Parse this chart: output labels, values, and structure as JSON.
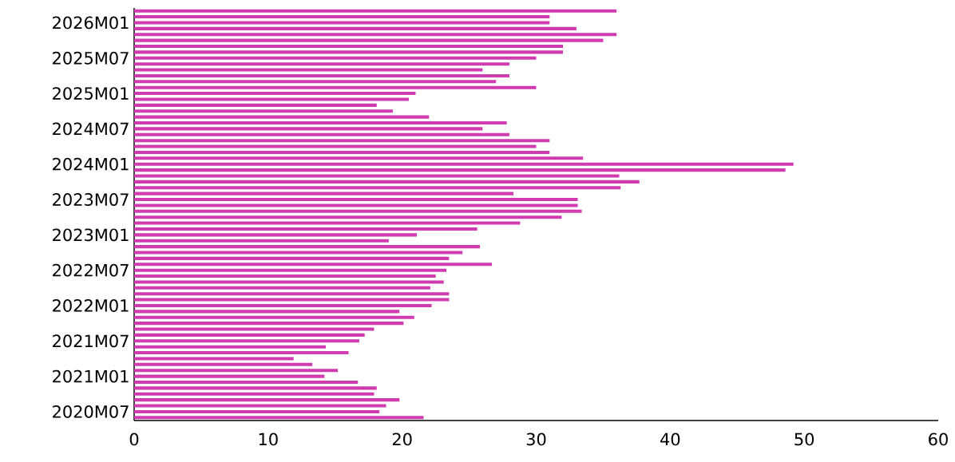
{
  "chart_data": {
    "type": "bar",
    "orientation": "horizontal",
    "color": "#d03cb0",
    "categories": [
      null,
      null,
      "2026M01",
      null,
      null,
      null,
      null,
      null,
      "2025M07",
      null,
      null,
      null,
      null,
      null,
      "2025M01",
      null,
      null,
      null,
      null,
      null,
      "2024M07",
      null,
      null,
      null,
      null,
      null,
      "2024M01",
      null,
      null,
      null,
      null,
      null,
      "2023M07",
      null,
      null,
      null,
      null,
      null,
      "2023M01",
      null,
      null,
      null,
      null,
      null,
      "2022M07",
      null,
      null,
      null,
      null,
      null,
      "2022M01",
      null,
      null,
      null,
      null,
      null,
      "2021M07",
      null,
      null,
      null,
      null,
      null,
      "2021M01",
      null,
      null,
      null,
      null,
      null,
      "2020M07",
      null
    ],
    "values": [
      36.0,
      31.0,
      31.0,
      33.0,
      36.0,
      35.0,
      32.0,
      32.0,
      30.0,
      28.0,
      26.0,
      28.0,
      27.0,
      30.0,
      21.0,
      20.5,
      18.1,
      19.3,
      22.0,
      27.8,
      26.0,
      28.0,
      31.0,
      30.0,
      31.0,
      33.5,
      49.2,
      48.6,
      36.2,
      37.7,
      36.3,
      28.3,
      33.1,
      33.1,
      33.4,
      31.9,
      28.8,
      25.6,
      21.1,
      19.0,
      25.8,
      24.5,
      23.5,
      26.7,
      23.3,
      22.5,
      23.1,
      22.1,
      23.5,
      23.5,
      22.2,
      19.8,
      20.9,
      20.1,
      17.9,
      17.2,
      16.8,
      14.3,
      16.0,
      11.9,
      13.3,
      15.2,
      14.2,
      16.7,
      18.1,
      17.9,
      19.8,
      18.8,
      18.3,
      21.6
    ],
    "xlim": [
      0,
      60
    ],
    "xticks": [
      0,
      10,
      20,
      30,
      40,
      50,
      60
    ]
  }
}
